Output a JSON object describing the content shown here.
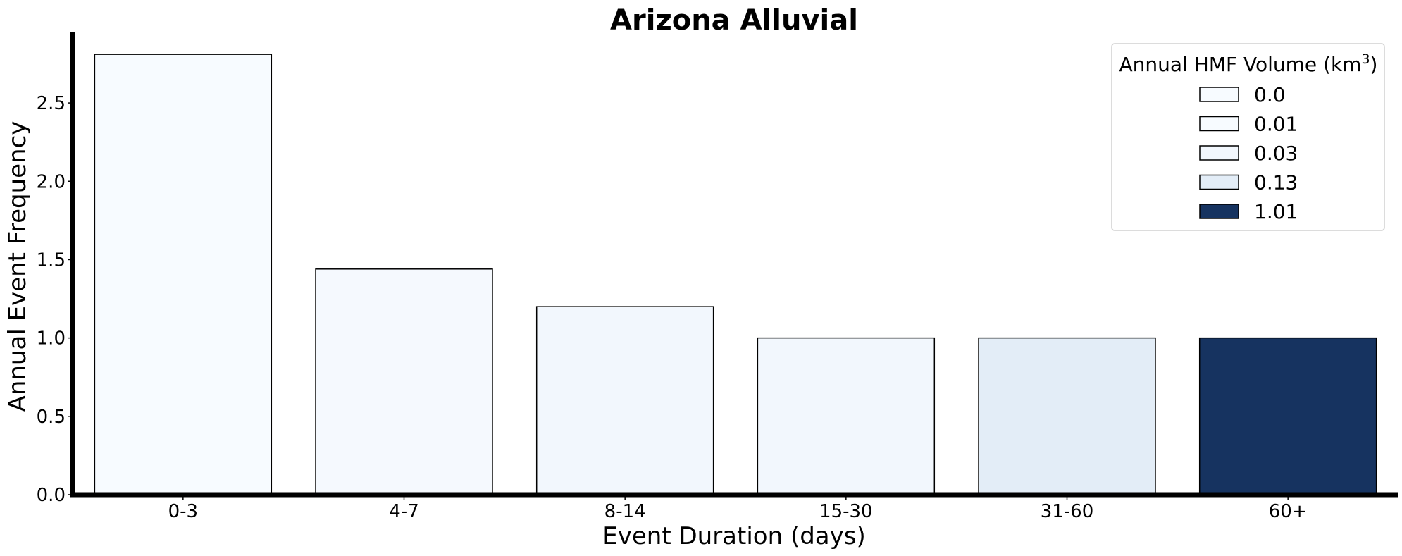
{
  "chart_data": {
    "type": "bar",
    "title": "Arizona Alluvial",
    "xlabel": "Event Duration (days)",
    "ylabel": "Annual Event Frequency",
    "categories": [
      "0-3",
      "4-7",
      "8-14",
      "15-30",
      "31-60",
      "60+"
    ],
    "values": [
      2.81,
      1.44,
      1.2,
      1.0,
      1.0,
      1.0
    ],
    "bar_colors": [
      "#f7fbff",
      "#f5f9fe",
      "#f2f7fd",
      "#f2f7fd",
      "#e3edf7",
      "#163360"
    ],
    "ylim": [
      0,
      2.95
    ],
    "yticks": [
      0.0,
      0.5,
      1.0,
      1.5,
      2.0,
      2.5
    ],
    "ytick_labels": [
      "0.0",
      "0.5",
      "1.0",
      "1.5",
      "2.0",
      "2.5"
    ],
    "grid": false,
    "legend": {
      "title": "Annual HMF Volume (km",
      "title_superscript": "3",
      "title_suffix": ")",
      "placement": "top-right",
      "entries": [
        {
          "label": "0.0",
          "color": "#f7fbff"
        },
        {
          "label": "0.01",
          "color": "#f7fbff"
        },
        {
          "label": "0.03",
          "color": "#f2f7fd"
        },
        {
          "label": "0.13",
          "color": "#e3edf7"
        },
        {
          "label": "1.01",
          "color": "#163360"
        }
      ]
    }
  }
}
